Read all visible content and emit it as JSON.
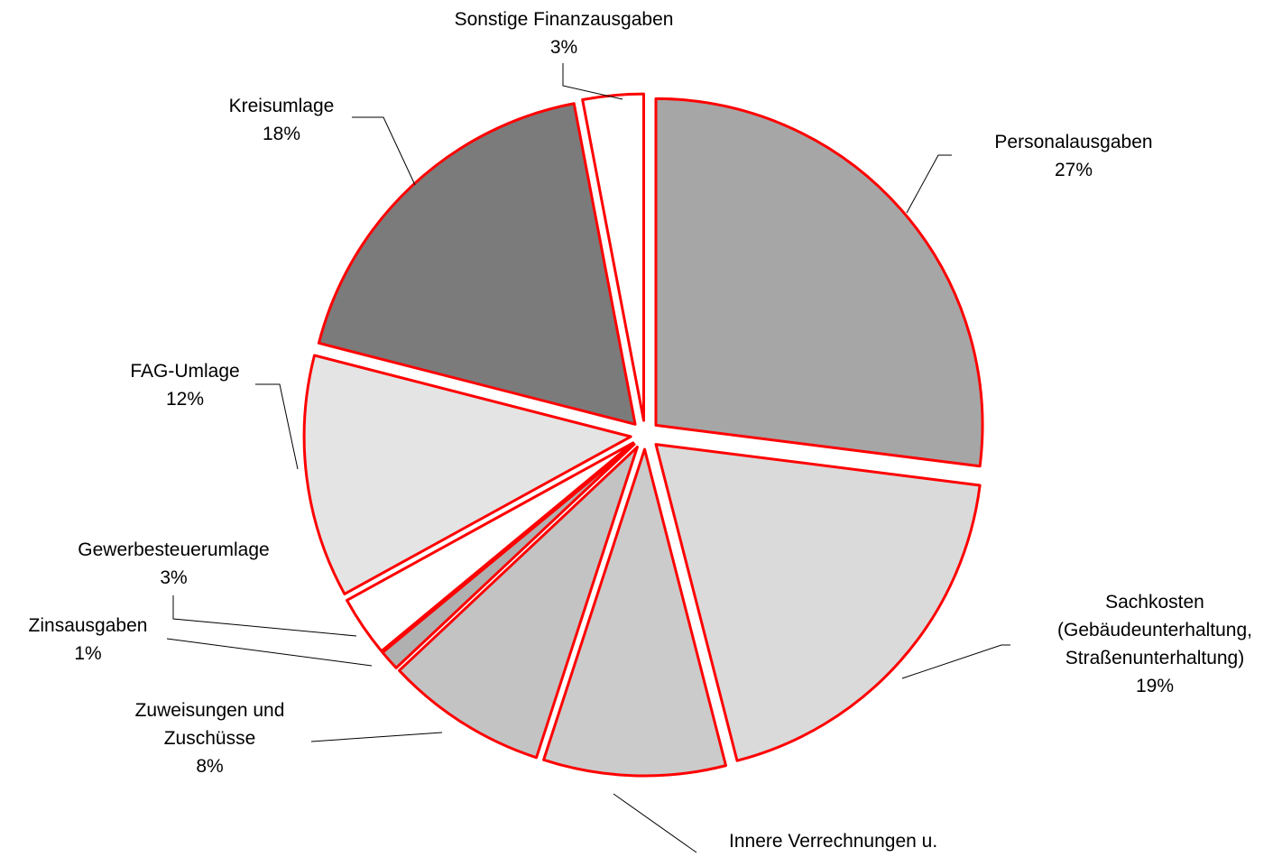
{
  "chart_data": {
    "type": "pie",
    "categories": [
      "Personalausgaben",
      "Sachkosten (Gebäudeunterhaltung, Straßenunterhaltung)",
      "Innere Verrechnungen u.",
      "Zuweisungen und Zuschüsse",
      "Zinsausgaben",
      "Gewerbesteuerumlage",
      "FAG-Umlage",
      "Kreisumlage",
      "Sonstige Finanzausgaben"
    ],
    "values": [
      27,
      19,
      9,
      8,
      1,
      3,
      12,
      18,
      3
    ],
    "value_labels": [
      "27%",
      "19%",
      null,
      "8%",
      "1%",
      "3%",
      "12%",
      "18%",
      "3%"
    ],
    "colors": [
      "#a6a6a6",
      "#dadada",
      "#cbcbcb",
      "#c3c3c3",
      "#b0b0b0",
      "#ffffff",
      "#e4e4e4",
      "#7b7b7b",
      "#ffffff"
    ],
    "edge_color": "#ff0000"
  }
}
